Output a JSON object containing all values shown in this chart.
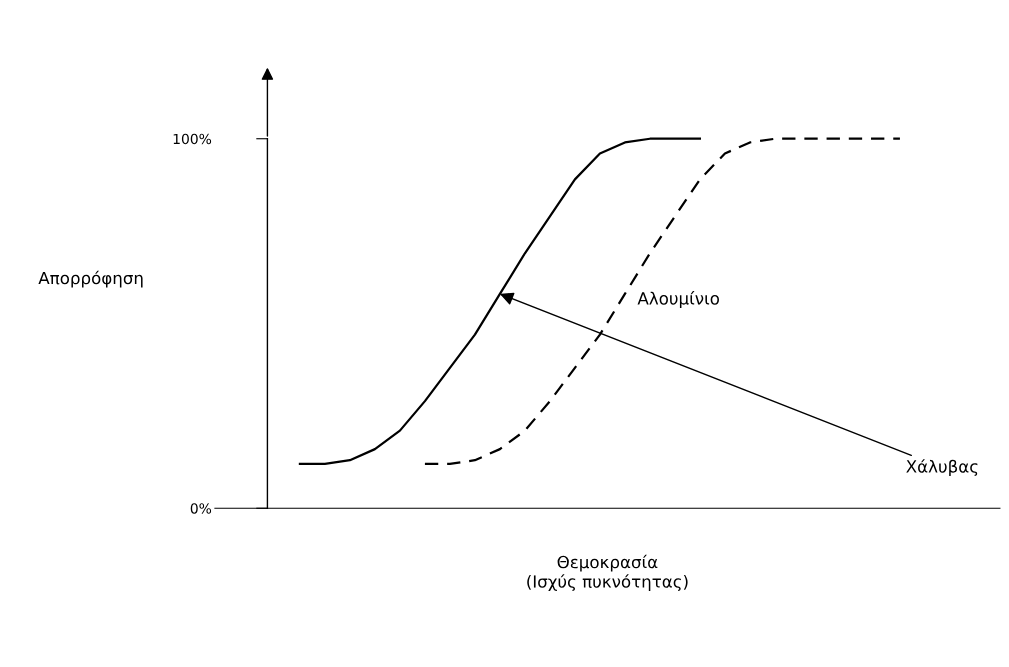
{
  "chart_data": {
    "type": "line",
    "ylabel": "Απορρόφηση",
    "xlabel": "Θεμοκρασία\n(Ισχύς πυκνότητας)",
    "categories": [
      null,
      null,
      null,
      null,
      null,
      null,
      null,
      null,
      null,
      null,
      null,
      null,
      null,
      null,
      null,
      null,
      null,
      null,
      null,
      null,
      null,
      null,
      null,
      null,
      null
    ],
    "series": [
      {
        "name": "Χάλυβας",
        "color": "#000000",
        "line_style": "solid",
        "values": [
          12,
          12,
          13,
          16,
          21,
          29,
          38,
          47,
          58,
          69,
          79,
          89,
          96,
          99,
          100,
          100,
          100,
          null,
          null,
          null,
          null,
          null,
          null,
          null,
          null
        ]
      },
      {
        "name": "Αλουμίνιο",
        "color": "#000000",
        "line_style": "dashed",
        "values": [
          null,
          null,
          null,
          null,
          null,
          12,
          12,
          13,
          16,
          21,
          29,
          38,
          47,
          58,
          69,
          79,
          89,
          96,
          99,
          100,
          100,
          100,
          100,
          100,
          100
        ]
      }
    ],
    "ylim": [
      0,
      100
    ],
    "yticks": [
      {
        "value": 0,
        "label": "0%"
      },
      {
        "value": 100,
        "label": "100%"
      }
    ],
    "grid": false,
    "legend": false,
    "marker": "none"
  }
}
